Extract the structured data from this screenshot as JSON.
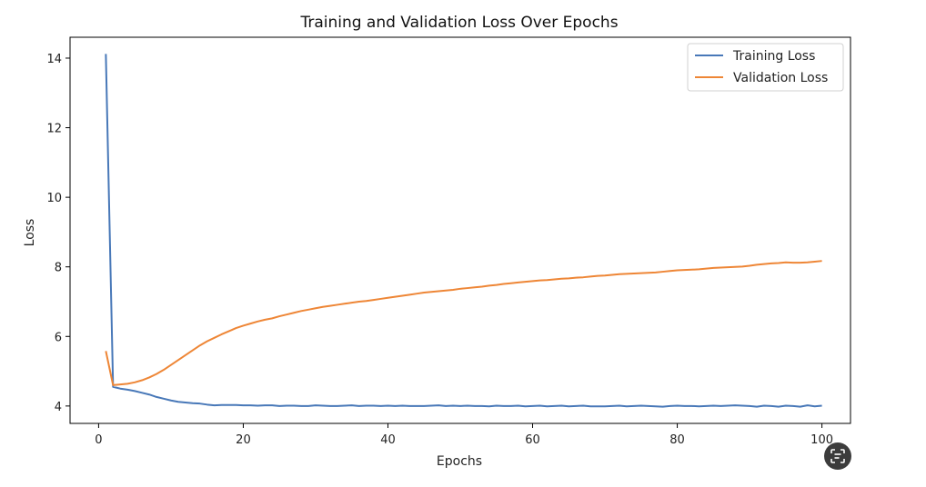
{
  "chart_data": {
    "type": "line",
    "title": "Training and Validation Loss Over Epochs",
    "xlabel": "Epochs",
    "ylabel": "Loss",
    "xlim": [
      -3.95,
      103.95
    ],
    "ylim": [
      3.5,
      14.6
    ],
    "xticks": [
      0,
      20,
      40,
      60,
      80,
      100
    ],
    "yticks": [
      4,
      6,
      8,
      10,
      12,
      14
    ],
    "grid": false,
    "legend_position": "upper-right",
    "x": [
      1,
      2,
      3,
      4,
      5,
      6,
      7,
      8,
      9,
      10,
      11,
      12,
      13,
      14,
      15,
      16,
      17,
      18,
      19,
      20,
      21,
      22,
      23,
      24,
      25,
      26,
      27,
      28,
      29,
      30,
      31,
      32,
      33,
      34,
      35,
      36,
      37,
      38,
      39,
      40,
      41,
      42,
      43,
      44,
      45,
      46,
      47,
      48,
      49,
      50,
      51,
      52,
      53,
      54,
      55,
      56,
      57,
      58,
      59,
      60,
      61,
      62,
      63,
      64,
      65,
      66,
      67,
      68,
      69,
      70,
      71,
      72,
      73,
      74,
      75,
      76,
      77,
      78,
      79,
      80,
      81,
      82,
      83,
      84,
      85,
      86,
      87,
      88,
      89,
      90,
      91,
      92,
      93,
      94,
      95,
      96,
      97,
      98,
      99,
      100
    ],
    "series": [
      {
        "name": "Training Loss",
        "color": "#4878b8",
        "values": [
          14.12,
          4.55,
          4.5,
          4.47,
          4.43,
          4.38,
          4.33,
          4.26,
          4.21,
          4.16,
          4.12,
          4.1,
          4.08,
          4.07,
          4.04,
          4.02,
          4.03,
          4.03,
          4.03,
          4.02,
          4.02,
          4.01,
          4.02,
          4.02,
          4.0,
          4.01,
          4.01,
          4.0,
          4.0,
          4.02,
          4.01,
          4.0,
          4.0,
          4.01,
          4.02,
          4.0,
          4.01,
          4.01,
          4.0,
          4.01,
          4.0,
          4.01,
          4.0,
          4.0,
          4.0,
          4.01,
          4.02,
          4.0,
          4.01,
          4.0,
          4.01,
          4.0,
          4.0,
          3.99,
          4.01,
          4.0,
          4.0,
          4.01,
          3.99,
          4.0,
          4.01,
          3.99,
          4.0,
          4.01,
          3.99,
          4.0,
          4.01,
          3.99,
          3.99,
          3.99,
          4.0,
          4.01,
          3.99,
          4.0,
          4.01,
          4.0,
          3.99,
          3.98,
          4.0,
          4.01,
          4.0,
          4.0,
          3.99,
          4.0,
          4.01,
          4.0,
          4.01,
          4.02,
          4.01,
          4.0,
          3.98,
          4.01,
          4.0,
          3.98,
          4.01,
          4.0,
          3.98,
          4.02,
          3.99,
          4.01
        ]
      },
      {
        "name": "Validation Loss",
        "color": "#ee8636",
        "values": [
          5.58,
          4.6,
          4.62,
          4.64,
          4.68,
          4.74,
          4.82,
          4.92,
          5.04,
          5.18,
          5.32,
          5.46,
          5.6,
          5.74,
          5.86,
          5.96,
          6.06,
          6.15,
          6.24,
          6.31,
          6.37,
          6.43,
          6.48,
          6.52,
          6.58,
          6.63,
          6.68,
          6.73,
          6.77,
          6.81,
          6.85,
          6.88,
          6.91,
          6.94,
          6.97,
          7.0,
          7.02,
          7.05,
          7.08,
          7.11,
          7.14,
          7.17,
          7.2,
          7.23,
          7.26,
          7.28,
          7.3,
          7.32,
          7.34,
          7.37,
          7.39,
          7.41,
          7.43,
          7.46,
          7.48,
          7.51,
          7.53,
          7.55,
          7.57,
          7.59,
          7.61,
          7.62,
          7.64,
          7.66,
          7.67,
          7.69,
          7.7,
          7.72,
          7.74,
          7.75,
          7.77,
          7.79,
          7.8,
          7.81,
          7.82,
          7.83,
          7.84,
          7.86,
          7.88,
          7.9,
          7.91,
          7.92,
          7.93,
          7.95,
          7.97,
          7.98,
          7.99,
          8.0,
          8.01,
          8.03,
          8.06,
          8.08,
          8.1,
          8.11,
          8.13,
          8.12,
          8.12,
          8.13,
          8.15,
          8.17
        ]
      }
    ]
  },
  "lens_button": {
    "icon": "lens-search-icon"
  }
}
